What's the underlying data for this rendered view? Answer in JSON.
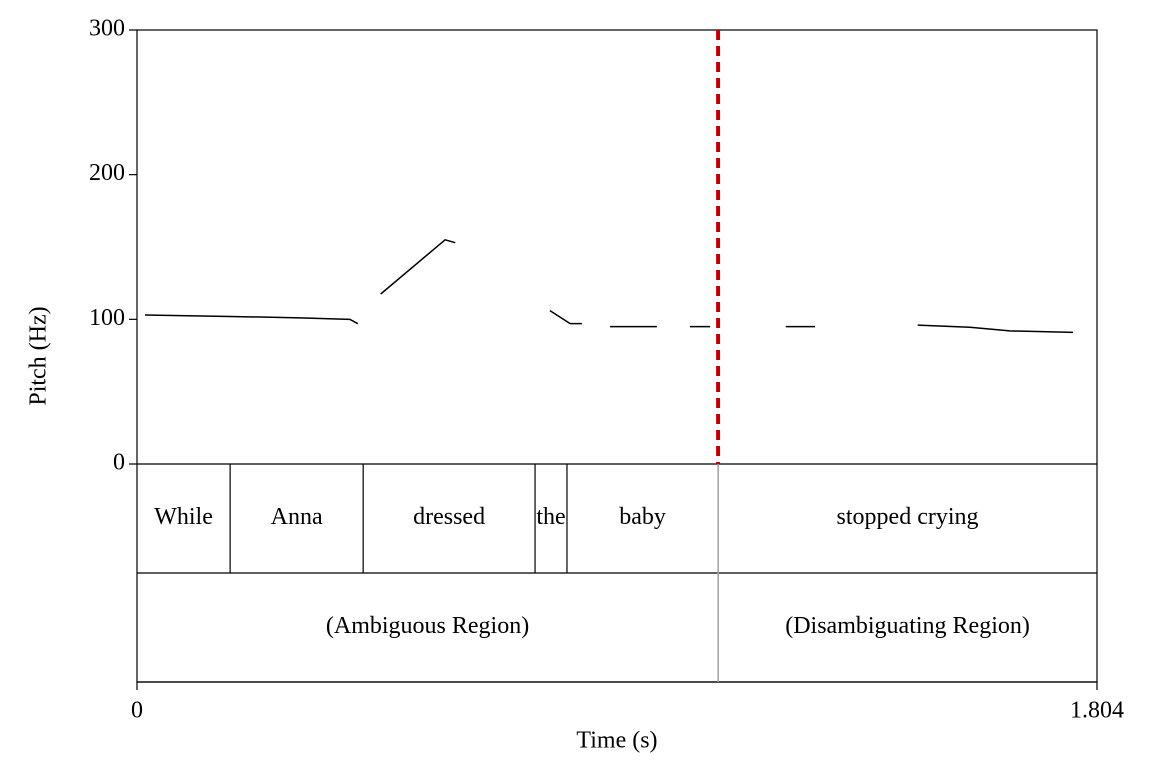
{
  "chart_data": {
    "type": "line",
    "y_label": "Pitch (Hz)",
    "x_label": "Time (s)",
    "xlim": [
      0,
      1.804
    ],
    "xticks": [
      0,
      1.804
    ],
    "ylim": [
      0,
      300
    ],
    "yticks": [
      0,
      100,
      200,
      300
    ],
    "color": "#000000",
    "x": [
      0.015,
      0.175,
      0.306,
      0.4,
      0.415,
      null,
      0.458,
      0.579,
      0.598,
      null,
      0.776,
      0.814,
      0.836,
      null,
      0.889,
      0.977,
      null,
      1.039,
      1.077,
      null,
      1.219,
      1.274,
      null,
      1.467,
      1.565,
      1.64,
      1.759
    ],
    "values": [
      103,
      102,
      101,
      100,
      97,
      null,
      117.5,
      155,
      153,
      null,
      106,
      97,
      97,
      null,
      95,
      95,
      null,
      95,
      95,
      null,
      95,
      95,
      null,
      96,
      94.5,
      92,
      91
    ],
    "marker": {
      "x": 1.092,
      "color": "#c00000"
    },
    "tiers": [
      {
        "boundaries": [
          0.175,
          0.425,
          0.748,
          0.808,
          1.092
        ],
        "labels": [
          "While",
          "Anna",
          "dressed",
          "the",
          "baby",
          "stopped crying"
        ]
      },
      {
        "boundaries": [
          1.092
        ],
        "labels": [
          "(Ambiguous Region)",
          "(Disambiguating Region)"
        ]
      }
    ]
  }
}
